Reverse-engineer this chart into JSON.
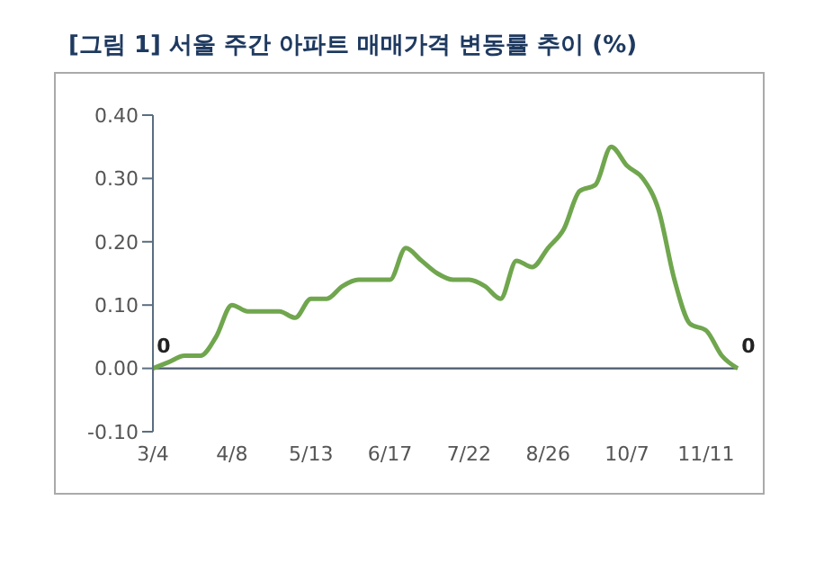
{
  "chart_data": {
    "type": "line",
    "title": "[그림 1] 서울 주간 아파트 매매가격 변동률 추이 (%)",
    "categories": [
      "3/4",
      null,
      null,
      null,
      null,
      "4/8",
      null,
      null,
      null,
      null,
      "5/13",
      null,
      null,
      null,
      null,
      "6/17",
      null,
      null,
      null,
      null,
      "7/22",
      null,
      null,
      null,
      null,
      "8/26",
      null,
      null,
      null,
      null,
      "10/7",
      null,
      null,
      null,
      null,
      "11/11",
      null,
      null
    ],
    "series": [
      {
        "color": "#70a64e",
        "values": [
          0,
          0.01,
          0.02,
          0.02,
          0.05,
          0.1,
          0.09,
          0.09,
          0.09,
          0.08,
          0.11,
          0.11,
          0.13,
          0.14,
          0.14,
          0.14,
          0.19,
          0.17,
          0.15,
          0.14,
          0.14,
          0.13,
          0.11,
          0.17,
          0.16,
          0.19,
          0.22,
          0.28,
          0.29,
          0.35,
          0.32,
          0.3,
          0.25,
          0.14,
          0.07,
          0.06,
          0.02,
          0
        ],
        "value_labels": [
          "0",
          null,
          null,
          null,
          null,
          null,
          null,
          null,
          null,
          null,
          null,
          null,
          null,
          null,
          null,
          null,
          null,
          null,
          null,
          null,
          null,
          null,
          null,
          null,
          null,
          null,
          null,
          null,
          null,
          null,
          null,
          null,
          null,
          null,
          null,
          null,
          null,
          "0"
        ]
      }
    ],
    "ylim": [
      -0.1,
      0.4
    ],
    "yticks": [
      {
        "value": -0.1,
        "label": "-0.10"
      },
      {
        "value": 0,
        "label": "0.00"
      },
      {
        "value": 0.1,
        "label": "0.10"
      },
      {
        "value": 0.2,
        "label": "0.20"
      },
      {
        "value": 0.3,
        "label": "0.30"
      },
      {
        "value": 0.4,
        "label": "0.40"
      }
    ],
    "legend": false,
    "marker": "none",
    "line_style": "solid"
  }
}
